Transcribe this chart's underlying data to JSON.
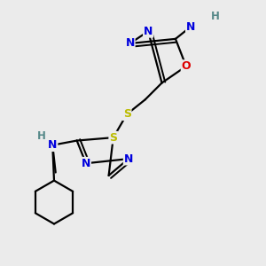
{
  "background_color": "#ebebeb",
  "colors": {
    "C": "#000000",
    "N": "#0000dd",
    "O": "#dd0000",
    "S": "#bbbb00",
    "H": "#558888",
    "bond": "#000000"
  },
  "figsize": [
    3.0,
    3.0
  ],
  "dpi": 100
}
